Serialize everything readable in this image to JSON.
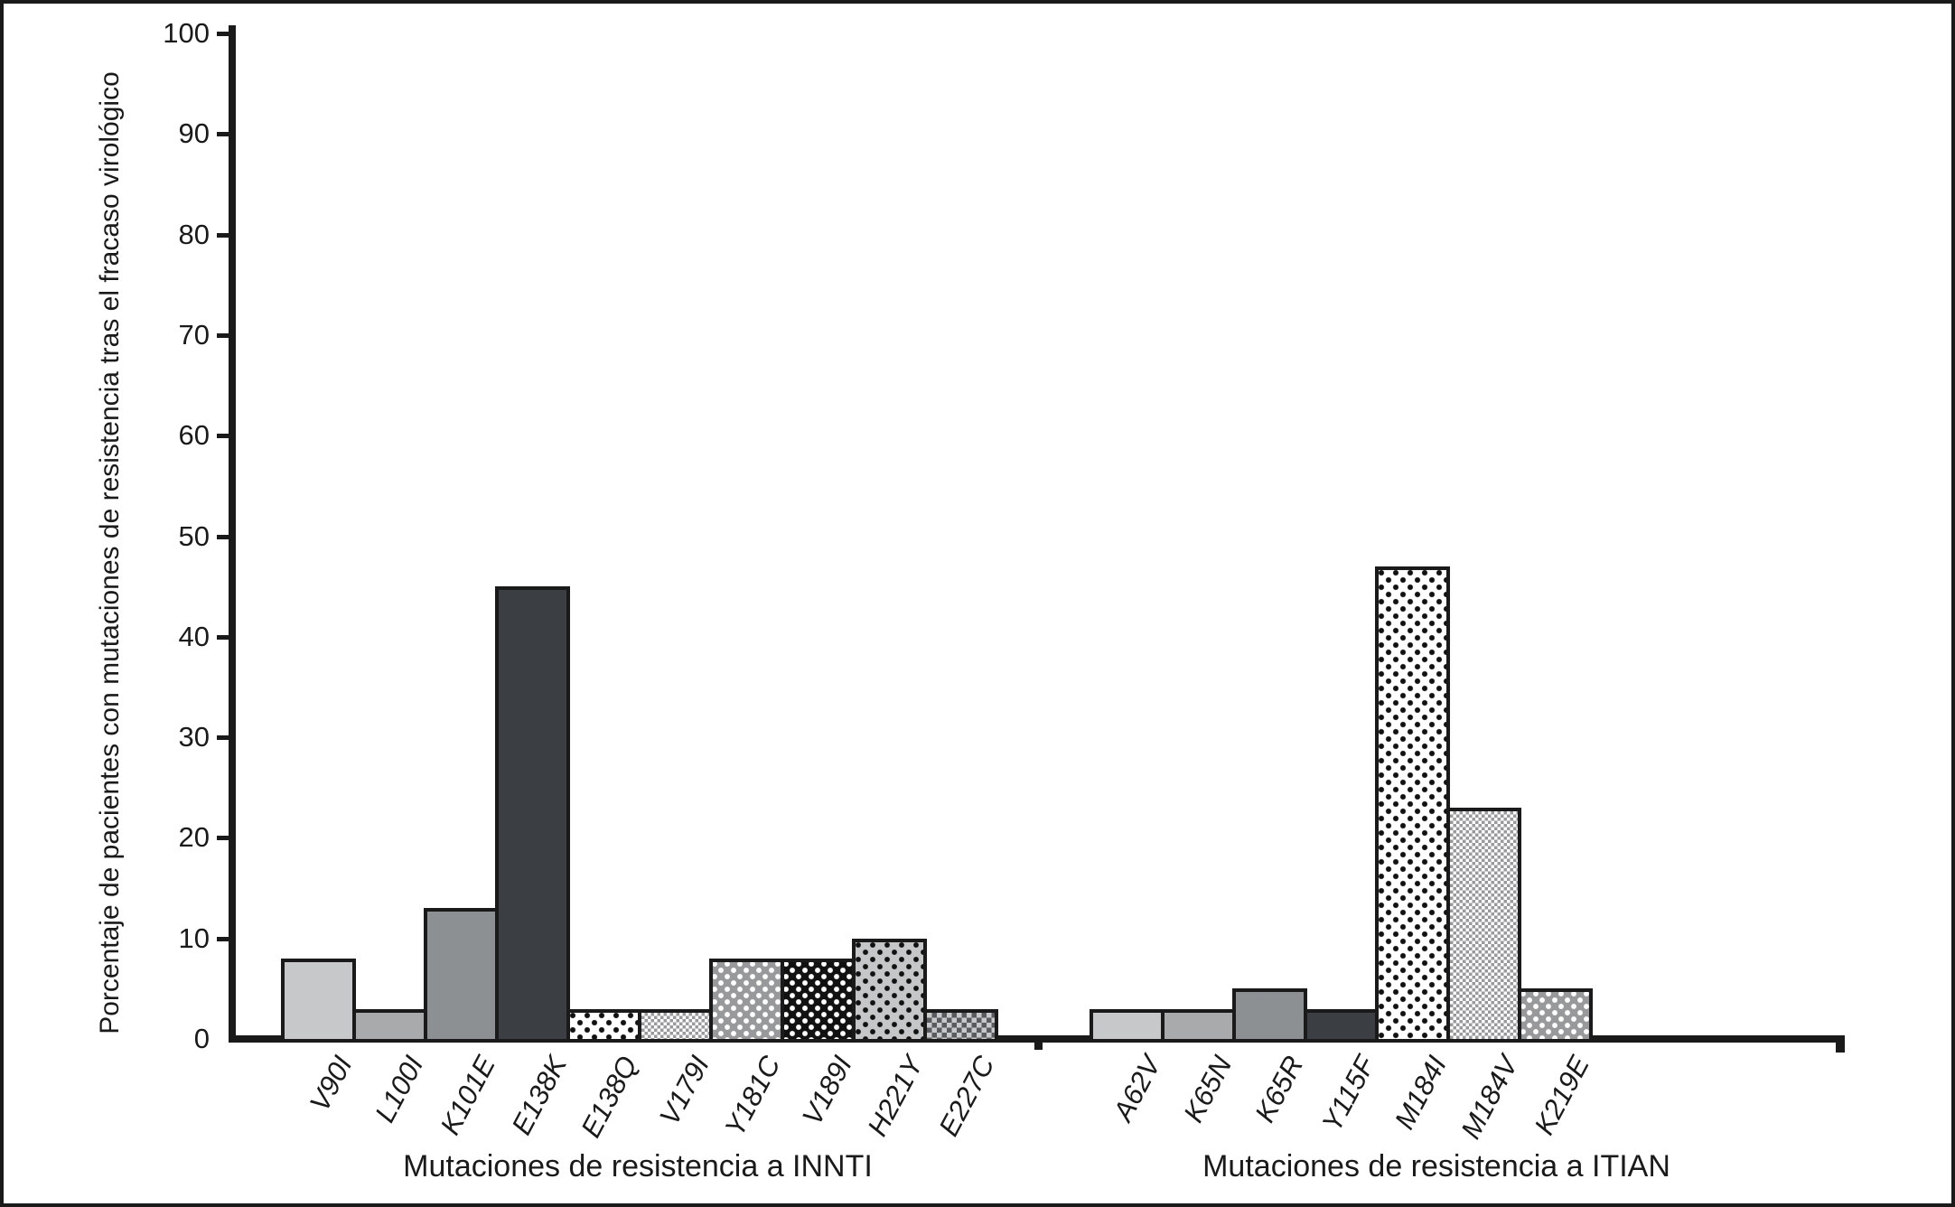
{
  "figure": {
    "y_axis_title": "Porcentaje de pacientes con mutaciones de resistencia tras el fracaso virológico",
    "y_tick_labels": [
      "0",
      "10",
      "20",
      "30",
      "40",
      "50",
      "60",
      "70",
      "80",
      "90",
      "100"
    ]
  },
  "chart_data": {
    "type": "bar",
    "title": "",
    "ylabel": "Porcentaje de pacientes con mutaciones de resistencia tras el fracaso virológico",
    "xlabel_groups": [
      "Mutaciones de resistencia a INNTI",
      "Mutaciones de resistencia a ITIAN"
    ],
    "ylim": [
      0,
      100
    ],
    "ytick_interval": 10,
    "grid": false,
    "legend": "none",
    "groups": [
      {
        "name": "Mutaciones de resistencia a INNTI",
        "categories": [
          "V90I",
          "L100I",
          "K101E",
          "E138K",
          "E138Q",
          "V179I",
          "Y181C",
          "V189I",
          "H221Y",
          "E227C"
        ],
        "values": [
          8,
          3,
          13,
          45,
          3,
          3,
          8,
          8,
          10,
          3
        ],
        "patterns": [
          "solid-lightgray",
          "solid-gray",
          "solid-midgray",
          "solid-darkgray",
          "dots-black-on-white",
          "checker-fine-gray",
          "dots-white-on-gray",
          "dots-white-on-black",
          "dots-black-on-lightgray",
          "checker-coarse-gray"
        ]
      },
      {
        "name": "Mutaciones de resistencia a ITIAN",
        "categories": [
          "A62V",
          "K65N",
          "K65R",
          "Y115F",
          "M184I",
          "M184V",
          "K219E"
        ],
        "values": [
          3,
          3,
          5,
          3,
          47,
          23,
          5
        ],
        "patterns": [
          "solid-lightgray",
          "solid-gray",
          "solid-midgray",
          "solid-darkgray",
          "dots-black-on-white",
          "checker-fine-gray",
          "dots-white-on-gray"
        ]
      }
    ]
  },
  "colors": {
    "ink": "#1a1a1a",
    "solid_lightgray": "#c6c8ca",
    "solid_gray": "#a8aaac",
    "solid_midgray": "#8d9093",
    "solid_darkgray": "#3b3e42",
    "dot_gray_bg": "#97999b",
    "dot_lightgray_bg": "#c4c6c8",
    "checker_dark": "#595b5e",
    "checker_light": "#c6c8ca",
    "white": "#ffffff",
    "black": "#111111"
  }
}
